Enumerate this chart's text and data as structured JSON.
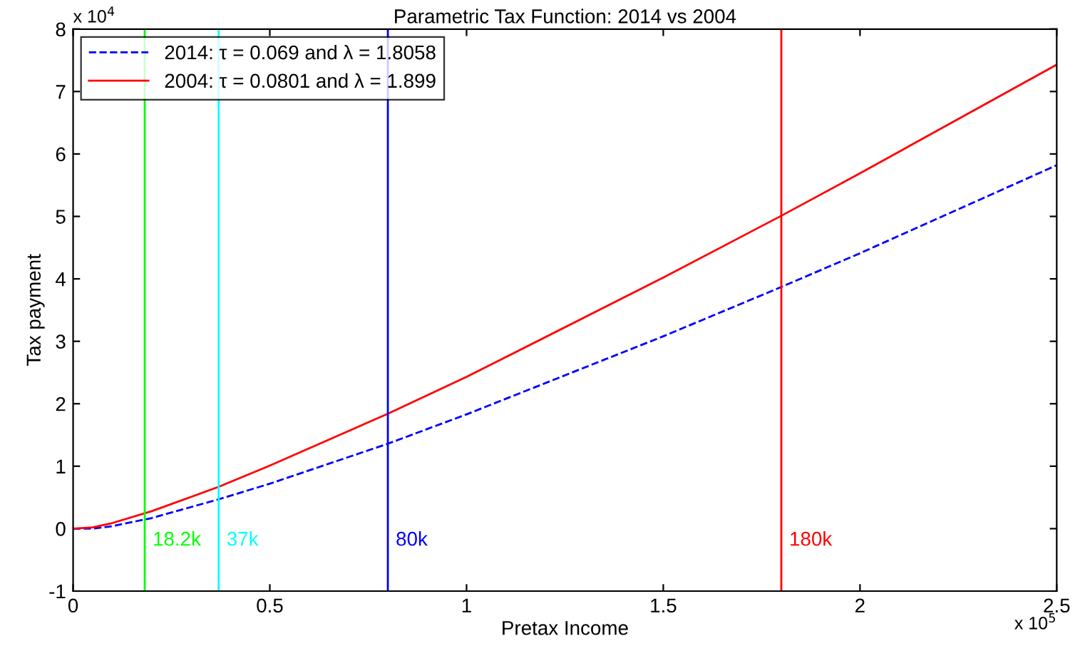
{
  "chart_data": {
    "type": "line",
    "title": "Parametric Tax Function: 2014 vs 2004",
    "xlabel": "Pretax Income",
    "ylabel": "Tax payment",
    "x": [
      0,
      0.05,
      0.1,
      0.2,
      0.37,
      0.5,
      0.8,
      1.0,
      1.5,
      1.8,
      2.0,
      2.5
    ],
    "series": [
      {
        "name": "2014: τ = 0.069 and λ = 1.8058",
        "color": "#0000ff",
        "line_style": "dashed",
        "values": [
          0,
          0,
          0.04,
          0.17,
          0.47,
          0.72,
          1.36,
          1.83,
          3.08,
          3.87,
          4.41,
          5.82
        ]
      },
      {
        "name": "2004: τ = 0.0801 and λ = 1.899",
        "color": "#ff0000",
        "line_style": "solid",
        "values": [
          0,
          0.02,
          0.09,
          0.28,
          0.67,
          1.01,
          1.84,
          2.43,
          4.02,
          5.01,
          5.69,
          7.43
        ]
      }
    ],
    "ref_lines": [
      {
        "axis": "x",
        "value": 0.182,
        "label": "18.2k",
        "color": "#00ff00"
      },
      {
        "axis": "x",
        "value": 0.37,
        "label": "37k",
        "color": "#00ffff"
      },
      {
        "axis": "x",
        "value": 0.8,
        "label": "80k",
        "color": "#0000ff"
      },
      {
        "axis": "x",
        "value": 1.8,
        "label": "180k",
        "color": "#ff0000"
      }
    ],
    "annotations": [
      "x 10$^{4}$",
      "x 10$^{5}$"
    ],
    "xlim": [
      0,
      2.5
    ],
    "xticks": [
      0,
      0.5,
      1,
      1.5,
      2,
      2.5
    ],
    "ylim": [
      -1,
      8
    ],
    "yticks": [
      -1,
      0,
      1,
      2,
      3,
      4,
      5,
      6,
      7,
      8
    ],
    "grid": false,
    "legend": "top left",
    "marker": "none"
  }
}
